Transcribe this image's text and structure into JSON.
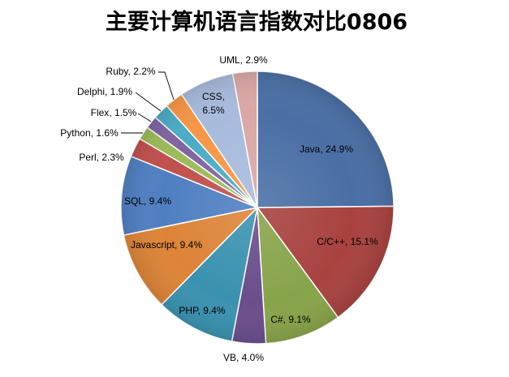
{
  "chart_data": {
    "type": "pie",
    "title": "主要计算机语言指数对比0806",
    "categories": [
      "Java",
      "C/C++",
      "C#",
      "VB",
      "PHP",
      "Javascript",
      "SQL",
      "Perl",
      "Python",
      "Flex",
      "Delphi",
      "Ruby",
      "CSS",
      "UML"
    ],
    "values": [
      24.9,
      15.1,
      9.1,
      4.0,
      9.4,
      9.4,
      9.4,
      2.3,
      1.6,
      1.5,
      1.9,
      2.2,
      6.5,
      2.9
    ],
    "unit": "%",
    "colors": [
      "#4A6FA5",
      "#A8423F",
      "#88A44A",
      "#6A4E8C",
      "#3A92B0",
      "#DD8438",
      "#4F7FC1",
      "#C0504D",
      "#9BBB59",
      "#8064A2",
      "#4BACC6",
      "#F79646",
      "#A7BBDD",
      "#D9A7A6"
    ]
  }
}
